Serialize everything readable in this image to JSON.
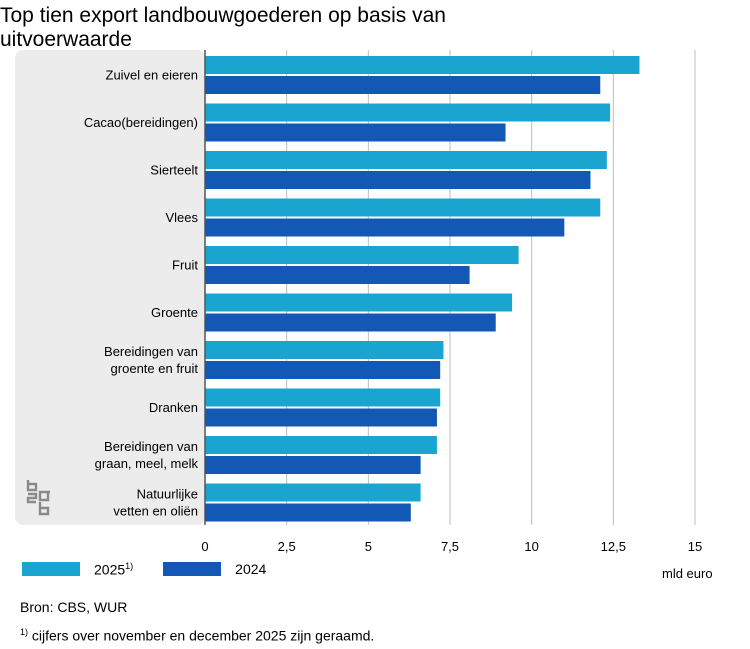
{
  "title": "Top tien export landbouwgoederen op basis van uitvoerwaarde",
  "legend": [
    {
      "label": "2025",
      "sup": "1)",
      "color": "#1AA5D0"
    },
    {
      "label": "2024",
      "sup": "",
      "color": "#1458B6"
    }
  ],
  "unit_label": "mld euro",
  "source": "Bron: CBS, WUR",
  "footnote": {
    "sup": "1)",
    "text": " cijfers over november en december 2025 zijn geraamd."
  },
  "logo_text": "cbs",
  "chart_data": {
    "type": "bar",
    "orientation": "horizontal",
    "title": "Top tien export landbouwgoederen op basis van uitvoerwaarde",
    "xlabel": "mld euro",
    "ylabel": "",
    "xlim": [
      0,
      15
    ],
    "xticks": [
      0,
      2.5,
      5,
      7.5,
      10,
      12.5,
      15
    ],
    "xtick_labels": [
      "0",
      "2,5",
      "5",
      "7,5",
      "10",
      "12,5",
      "15"
    ],
    "grid": "vertical",
    "legend_position": "bottom-left",
    "categories": [
      [
        "Zuivel en eieren"
      ],
      [
        "Cacao(bereidingen)"
      ],
      [
        "Sierteelt"
      ],
      [
        "Vlees"
      ],
      [
        "Fruit"
      ],
      [
        "Groente"
      ],
      [
        "Bereidingen van",
        "groente en fruit"
      ],
      [
        "Dranken"
      ],
      [
        "Bereidingen van",
        "graan, meel, melk"
      ],
      [
        "Natuurlijke",
        "vetten en oliën"
      ]
    ],
    "series": [
      {
        "name": "2025",
        "color": "#1AA5D0",
        "values": [
          13.3,
          12.4,
          12.3,
          12.1,
          9.6,
          9.4,
          7.3,
          7.2,
          7.1,
          6.6
        ]
      },
      {
        "name": "2024",
        "color": "#1458B6",
        "values": [
          12.1,
          9.2,
          11.8,
          11.0,
          8.1,
          8.9,
          7.2,
          7.1,
          6.6,
          6.3
        ]
      }
    ]
  }
}
